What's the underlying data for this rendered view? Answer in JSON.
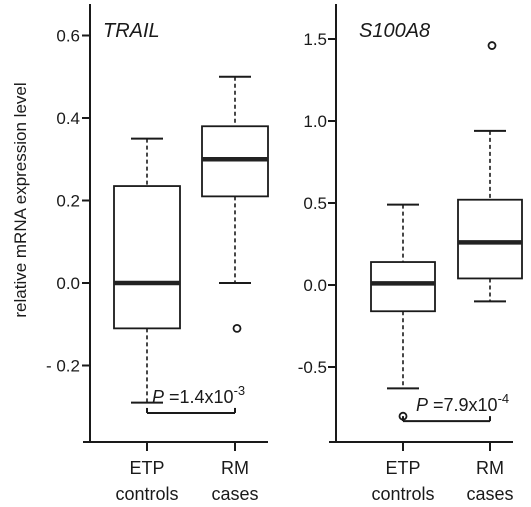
{
  "ylabel": "relative mRNA expression  level",
  "colors": {
    "ink": "#1a1a1a",
    "median": "#222222"
  },
  "chart_data": [
    {
      "type": "box",
      "title": "TRAIL",
      "ylabel": "relative mRNA expression  level",
      "yticks": [
        {
          "value": 0.6,
          "label": "0.6"
        },
        {
          "value": 0.4,
          "label": "0.4"
        },
        {
          "value": 0.2,
          "label": "0.2"
        },
        {
          "value": 0.0,
          "label": "0.0"
        },
        {
          "value": -0.2,
          "label": "- 0.2"
        }
      ],
      "ylim": [
        -0.38,
        0.66
      ],
      "categories": [
        {
          "line1": "ETP",
          "line2": "controls"
        },
        {
          "line1": "RM",
          "line2": "cases"
        }
      ],
      "boxes": [
        {
          "whisker_low": -0.29,
          "q1": -0.11,
          "median": 0.0,
          "q3": 0.235,
          "whisker_high": 0.35,
          "outliers": []
        },
        {
          "whisker_low": 0.0,
          "q1": 0.21,
          "median": 0.3,
          "q3": 0.38,
          "whisker_high": 0.5,
          "outliers": [
            -0.11
          ]
        }
      ],
      "significance": {
        "p": "P",
        "eq": " =1.4x10",
        "exp": "-3",
        "y": -0.315
      }
    },
    {
      "type": "box",
      "title": "S100A8",
      "yticks": [
        {
          "value": 1.5,
          "label": "1.5"
        },
        {
          "value": 1.0,
          "label": "1.0"
        },
        {
          "value": 0.5,
          "label": "0.5"
        },
        {
          "value": 0.0,
          "label": "0.0"
        },
        {
          "value": -0.5,
          "label": "-0.5"
        }
      ],
      "ylim": [
        -0.9,
        1.65
      ],
      "categories": [
        {
          "line1": "ETP",
          "line2": "controls"
        },
        {
          "line1": "RM",
          "line2": "cases"
        }
      ],
      "boxes": [
        {
          "whisker_low": -0.63,
          "q1": -0.16,
          "median": 0.01,
          "q3": 0.14,
          "whisker_high": 0.49,
          "outliers": [
            -0.8
          ]
        },
        {
          "whisker_low": -0.1,
          "q1": 0.04,
          "median": 0.26,
          "q3": 0.52,
          "whisker_high": 0.94,
          "outliers": [
            1.46
          ]
        }
      ],
      "significance": {
        "p": "P",
        "eq": " =7.9x10",
        "exp": "-4",
        "y": -0.83
      }
    }
  ]
}
